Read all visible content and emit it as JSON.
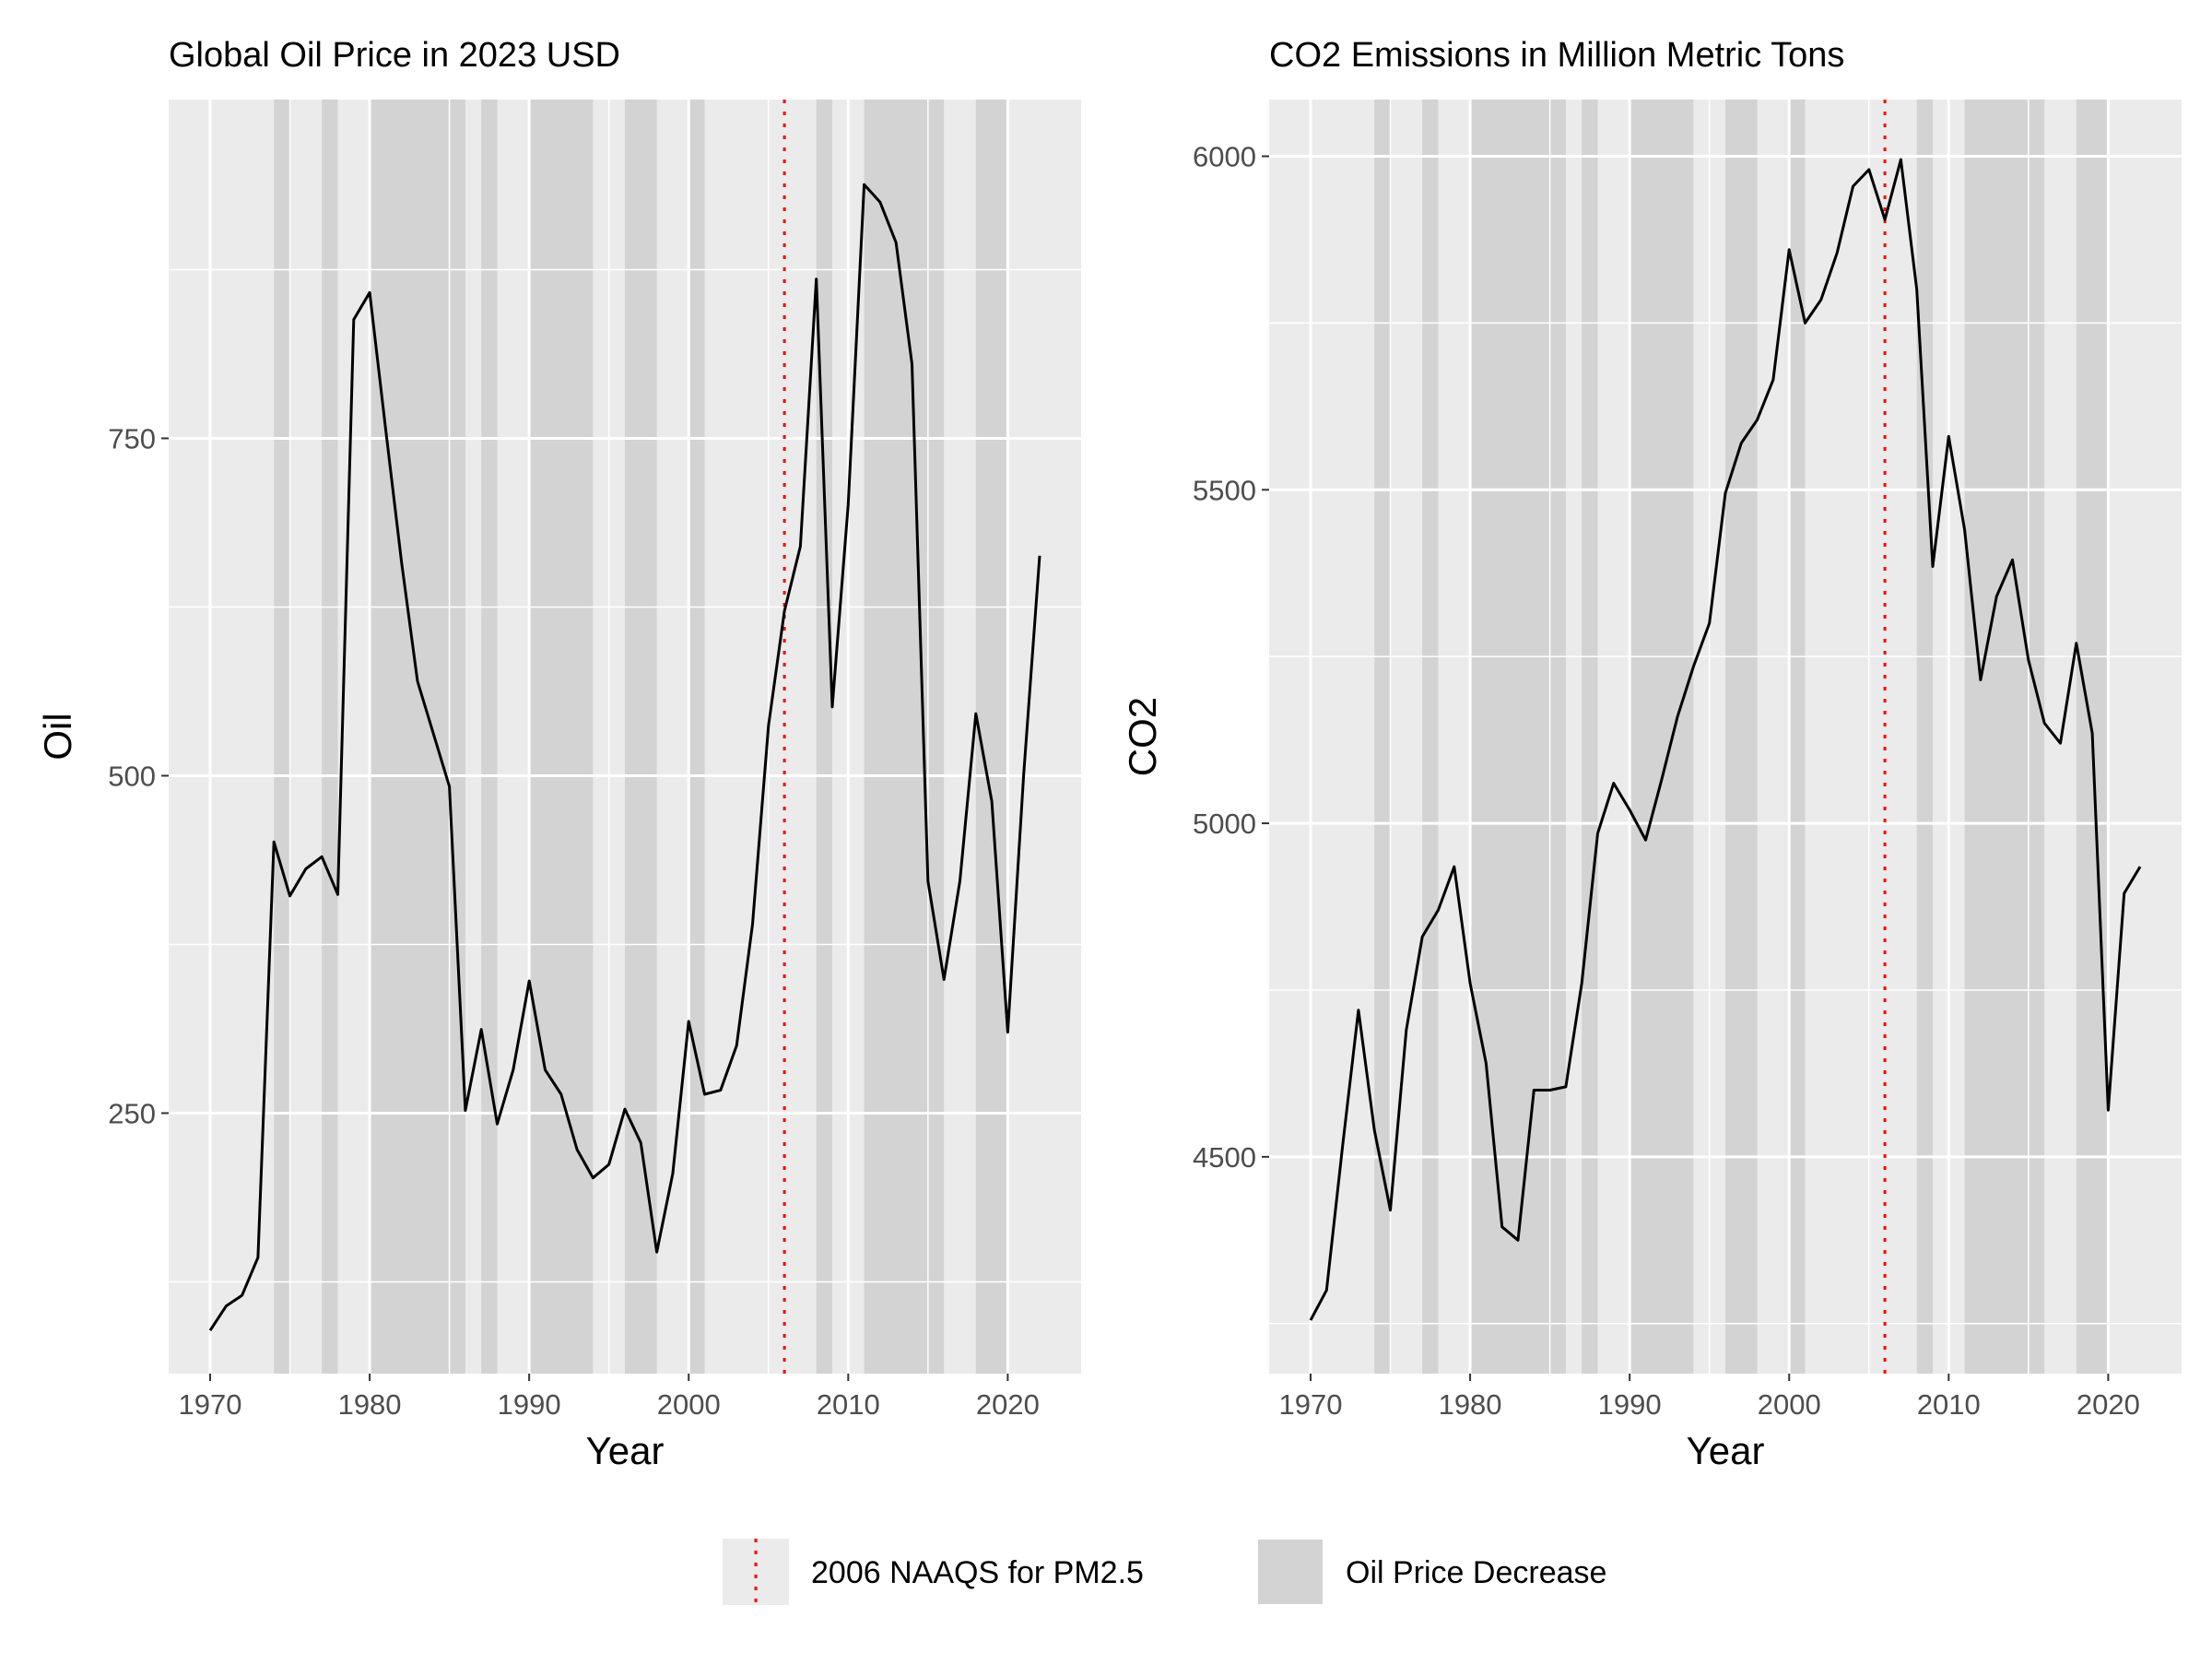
{
  "legend": {
    "naaqs_label": "2006 NAAQS for PM2.5",
    "decrease_label": "Oil Price Decrease",
    "naaqs_color": "#ff0000",
    "decrease_color": "#d3d3d3"
  },
  "chart_data": [
    {
      "type": "line",
      "title": "Global Oil Price in 2023 USD",
      "xlabel": "Year",
      "ylabel": "Oil",
      "xlim": [
        1967.4,
        2024.6
      ],
      "ylim": [
        57,
        1001
      ],
      "x_ticks": [
        1970,
        1980,
        1990,
        2000,
        2010,
        2020
      ],
      "y_ticks": [
        250,
        500,
        750
      ],
      "grid": true,
      "vline_x": 2006,
      "decrease_spans": [
        [
          1974,
          1975
        ],
        [
          1977,
          1978
        ],
        [
          1980,
          1986
        ],
        [
          1987,
          1988
        ],
        [
          1990,
          1994
        ],
        [
          1996,
          1998
        ],
        [
          2000,
          2001
        ],
        [
          2008,
          2009
        ],
        [
          2011,
          2016
        ],
        [
          2018,
          2020
        ]
      ],
      "x": [
        1970,
        1971,
        1972,
        1973,
        1974,
        1975,
        1976,
        1977,
        1978,
        1979,
        1980,
        1981,
        1982,
        1983,
        1984,
        1985,
        1986,
        1987,
        1988,
        1989,
        1990,
        1991,
        1992,
        1993,
        1994,
        1995,
        1996,
        1997,
        1998,
        1999,
        2000,
        2001,
        2002,
        2003,
        2004,
        2005,
        2006,
        2007,
        2008,
        2009,
        2010,
        2011,
        2012,
        2013,
        2014,
        2015,
        2016,
        2017,
        2018,
        2019,
        2020,
        2021,
        2022
      ],
      "y": [
        89,
        107,
        115,
        143,
        451,
        411,
        431,
        440,
        412,
        838,
        858,
        757,
        658,
        570,
        531,
        492,
        252,
        312,
        242,
        282,
        348,
        282,
        264,
        223,
        202,
        212,
        253,
        228,
        147,
        205,
        318,
        264,
        267,
        300,
        390,
        537,
        622,
        670,
        868,
        551,
        701,
        938,
        925,
        895,
        805,
        422,
        349,
        422,
        546,
        481,
        310,
        501,
        663
      ]
    },
    {
      "type": "line",
      "title": "CO2 Emissions in Million Metric Tons",
      "xlabel": "Year",
      "ylabel": "CO2",
      "xlim": [
        1967.4,
        2024.6
      ],
      "ylim": [
        4175,
        6085
      ],
      "x_ticks": [
        1970,
        1980,
        1990,
        2000,
        2010,
        2020
      ],
      "y_ticks": [
        4500,
        5000,
        5500,
        6000
      ],
      "grid": true,
      "vline_x": 2006,
      "decrease_spans": [
        [
          1974,
          1975
        ],
        [
          1977,
          1978
        ],
        [
          1980,
          1986
        ],
        [
          1987,
          1988
        ],
        [
          1990,
          1994
        ],
        [
          1996,
          1998
        ],
        [
          2000,
          2001
        ],
        [
          2008,
          2009
        ],
        [
          2011,
          2016
        ],
        [
          2018,
          2020
        ]
      ],
      "x": [
        1970,
        1971,
        1972,
        1973,
        1974,
        1975,
        1976,
        1977,
        1978,
        1979,
        1980,
        1981,
        1982,
        1983,
        1984,
        1985,
        1986,
        1987,
        1988,
        1989,
        1990,
        1991,
        1992,
        1993,
        1994,
        1995,
        1996,
        1997,
        1998,
        1999,
        2000,
        2001,
        2002,
        2003,
        2004,
        2005,
        2006,
        2007,
        2008,
        2009,
        2010,
        2011,
        2012,
        2013,
        2014,
        2015,
        2016,
        2017,
        2018,
        2019,
        2020,
        2021,
        2022
      ],
      "y": [
        4255,
        4300,
        4515,
        4720,
        4540,
        4420,
        4690,
        4830,
        4870,
        4935,
        4760,
        4640,
        4395,
        4375,
        4600,
        4600,
        4605,
        4760,
        4985,
        5060,
        5020,
        4975,
        5065,
        5160,
        5235,
        5300,
        5495,
        5570,
        5605,
        5665,
        5860,
        5750,
        5785,
        5855,
        5955,
        5980,
        5905,
        5995,
        5800,
        5385,
        5580,
        5440,
        5215,
        5340,
        5395,
        5245,
        5150,
        5120,
        5270,
        5135,
        4570,
        4895,
        4935
      ]
    }
  ]
}
